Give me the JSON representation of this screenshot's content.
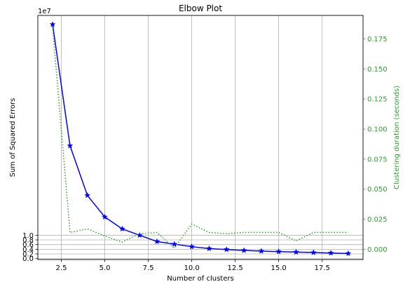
{
  "chart_data": {
    "type": "line",
    "title": "Elbow Plot",
    "xlabel": "Number of clusters",
    "ylabel": "Sum of Squared Errors",
    "y2label": "Clustering duration (seconds)",
    "y_offset_label": "1e7",
    "xlim": [
      1.15,
      19.85
    ],
    "ylim": [
      -0.0385,
      10.385
    ],
    "y2lim": [
      -0.0085,
      0.1945
    ],
    "x_ticks": [
      2.5,
      5.0,
      7.5,
      10.0,
      12.5,
      15.0,
      17.5
    ],
    "x_tick_labels": [
      "2.5",
      "5.0",
      "7.5",
      "10.0",
      "12.5",
      "15.0",
      "17.5"
    ],
    "y_ticks": [
      0.0,
      0.2,
      0.4,
      0.6,
      0.8,
      1.0
    ],
    "y_tick_labels": [
      "0.0",
      "0.2",
      "0.4",
      "0.6",
      "0.8",
      "1.0"
    ],
    "y2_ticks": [
      0.0,
      0.025,
      0.05,
      0.075,
      0.1,
      0.125,
      0.15,
      0.175
    ],
    "y2_tick_labels": [
      "0.000",
      "0.025",
      "0.050",
      "0.075",
      "0.100",
      "0.125",
      "0.150",
      "0.175"
    ],
    "grid": true,
    "x": [
      2,
      3,
      4,
      5,
      6,
      7,
      8,
      9,
      10,
      11,
      12,
      13,
      14,
      15,
      16,
      17,
      18,
      19
    ],
    "series": [
      {
        "axis": "left",
        "color": "#0000ff",
        "style": "solid",
        "marker": "star",
        "values": [
          10.0,
          4.82,
          2.7,
          1.78,
          1.27,
          1.0,
          0.73,
          0.62,
          0.51,
          0.43,
          0.39,
          0.35,
          0.32,
          0.3,
          0.28,
          0.26,
          0.24,
          0.22
        ]
      },
      {
        "axis": "right",
        "color": "#2ca02c",
        "style": "dotted",
        "values": [
          0.185,
          0.014,
          0.017,
          0.011,
          0.006,
          0.013,
          0.014,
          0.001,
          0.021,
          0.014,
          0.013,
          0.014,
          0.014,
          0.014,
          0.007,
          0.014,
          0.014,
          0.014
        ]
      }
    ]
  }
}
